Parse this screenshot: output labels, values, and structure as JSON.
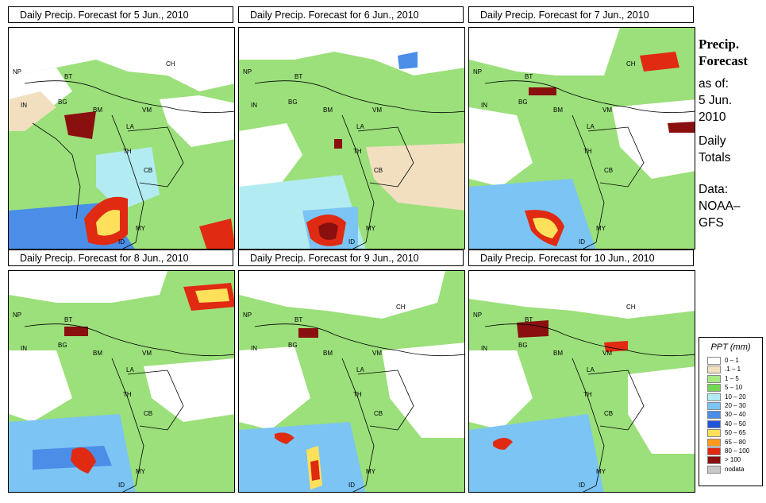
{
  "panels": [
    {
      "title": "Daily Precip. Forecast for  5 Jun., 2010"
    },
    {
      "title": "Daily Precip. Forecast for  6 Jun., 2010"
    },
    {
      "title": "Daily Precip. Forecast for  7 Jun., 2010"
    },
    {
      "title": "Daily Precip. Forecast for  8 Jun., 2010"
    },
    {
      "title": "Daily Precip. Forecast for  9 Jun., 2010"
    },
    {
      "title": "Daily Precip. Forecast for  10 Jun., 2010"
    }
  ],
  "map_labels": {
    "NP": "NP",
    "BT": "BT",
    "BG": "BG",
    "IN": "IN",
    "CH": "CH",
    "BM": "BM",
    "VM": "VM",
    "LA": "LA",
    "TH": "TH",
    "CB": "CB",
    "MY": "MY",
    "ID": "ID"
  },
  "sidebar": {
    "title_line1": "Precip.",
    "title_line2": "Forecast",
    "asof": "as of:",
    "date1": "5 Jun.",
    "date2": "2010",
    "daily": "Daily",
    "totals": "Totals",
    "data_label": "Data:",
    "source1": "NOAA–",
    "source2": "GFS"
  },
  "legend": {
    "title": "PPT (mm)",
    "items": [
      {
        "label": "0 – 1",
        "color": "#ffffff"
      },
      {
        "label": ".1 – 1",
        "color": "#f1dfc0"
      },
      {
        "label": "1 – 5",
        "color": "#a6ea82"
      },
      {
        "label": "5 – 10",
        "color": "#74d654"
      },
      {
        "label": "10 – 20",
        "color": "#b2ecf2"
      },
      {
        "label": "20 – 30",
        "color": "#7cc4f4"
      },
      {
        "label": "30 – 40",
        "color": "#4a8ee8"
      },
      {
        "label": "40 – 50",
        "color": "#1f55d8"
      },
      {
        "label": "50 – 65",
        "color": "#ffe05a"
      },
      {
        "label": "65 – 80",
        "color": "#ff9a1e"
      },
      {
        "label": "80 – 100",
        "color": "#e02a12"
      },
      {
        "label": "> 100",
        "color": "#8a0f0f"
      },
      {
        "label": "nodata",
        "color": "#c8c8c8"
      }
    ]
  }
}
